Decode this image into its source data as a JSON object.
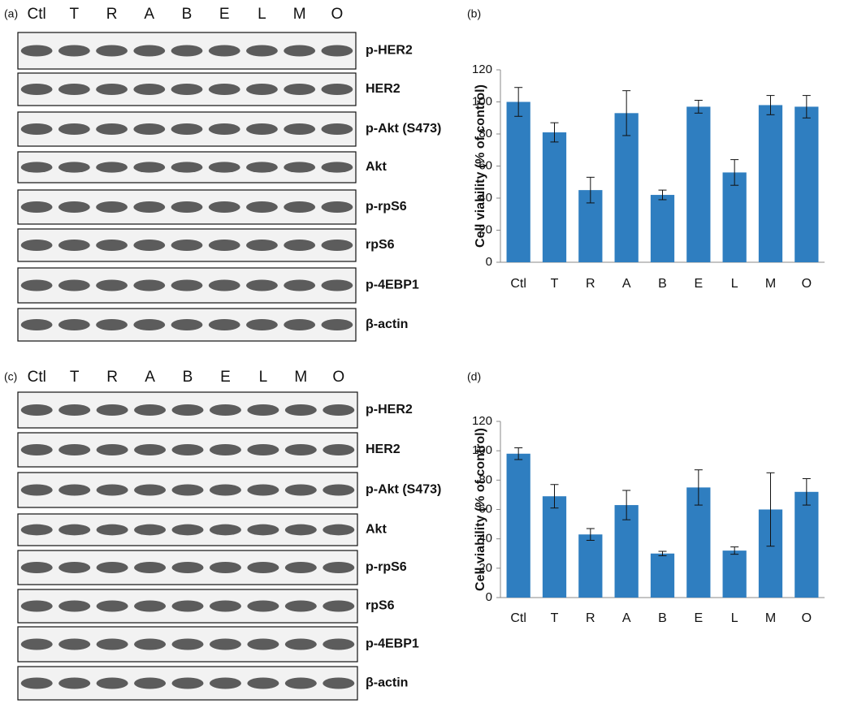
{
  "blot_panels": [
    {
      "label": "(a)",
      "lanes": [
        "Ctl",
        "T",
        "R",
        "A",
        "B",
        "E",
        "L",
        "M",
        "O"
      ],
      "proteins": [
        "p-HER2",
        "HER2",
        "p-Akt  (S473)",
        "Akt",
        "p-rpS6",
        "rpS6",
        "p-4EBP1",
        "β-actin"
      ]
    },
    {
      "label": "(c)",
      "lanes": [
        "Ctl",
        "T",
        "R",
        "A",
        "B",
        "E",
        "L",
        "M",
        "O"
      ],
      "proteins": [
        "p-HER2",
        "HER2",
        "p-Akt  (S473)",
        "Akt",
        "p-rpS6",
        "rpS6",
        "p-4EBP1",
        "β-actin"
      ]
    }
  ],
  "chart_data": [
    {
      "type": "bar",
      "panel_label": "(b)",
      "ylabel": "Cell viability (% of control)",
      "categories": [
        "Ctl",
        "T",
        "R",
        "A",
        "B",
        "E",
        "L",
        "M",
        "O"
      ],
      "values": [
        100,
        81,
        45,
        93,
        42,
        97,
        56,
        98,
        97
      ],
      "errors": [
        9,
        6,
        8,
        14,
        3,
        4,
        8,
        6,
        7
      ],
      "color": "#2f7ec0",
      "ylim": [
        0,
        120
      ],
      "yticks": [
        0,
        20,
        40,
        60,
        80,
        100,
        120
      ]
    },
    {
      "type": "bar",
      "panel_label": "(d)",
      "ylabel": "Cell viability (% of control)",
      "categories": [
        "Ctl",
        "T",
        "R",
        "A",
        "B",
        "E",
        "L",
        "M",
        "O"
      ],
      "values": [
        98,
        69,
        43,
        63,
        30,
        75,
        32,
        60,
        72
      ],
      "errors": [
        4,
        8,
        4,
        10,
        1.5,
        12,
        2.5,
        25,
        9
      ],
      "color": "#2f7ec0",
      "ylim": [
        0,
        120
      ],
      "yticks": [
        0,
        20,
        40,
        60,
        80,
        100,
        120
      ]
    }
  ]
}
